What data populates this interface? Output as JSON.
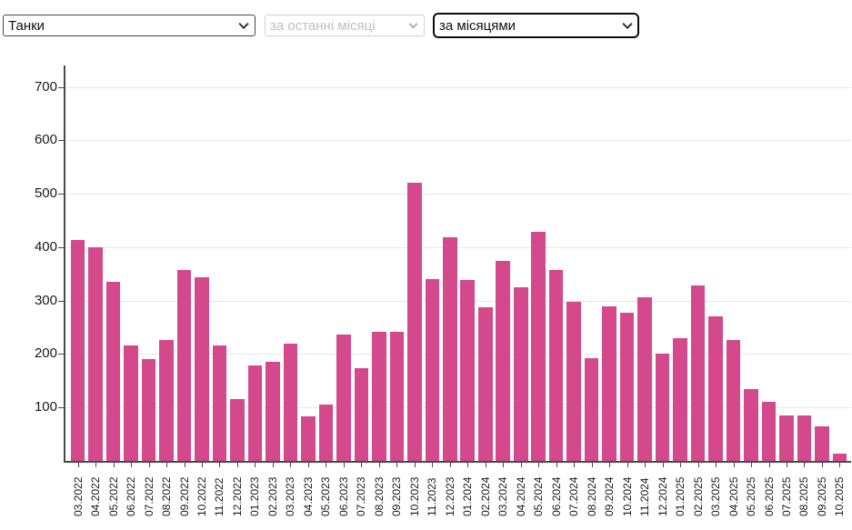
{
  "controls": {
    "category_select": {
      "value": "Танки"
    },
    "period_select": {
      "value": "за останні місяці"
    },
    "grouping_select": {
      "value": "за місяцями"
    }
  },
  "chart_data": {
    "type": "bar",
    "title": "",
    "categories": [
      "03.2022",
      "04.2022",
      "05.2022",
      "06.2022",
      "07.2022",
      "08.2022",
      "09.2022",
      "10.2022",
      "11.2022",
      "12.2022",
      "01.2023",
      "02.2023",
      "03.2023",
      "04.2023",
      "05.2023",
      "06.2023",
      "07.2023",
      "08.2023",
      "09.2023",
      "10.2023",
      "11.2023",
      "12.2023",
      "01.2024",
      "02.2024",
      "03.2024",
      "04.2024",
      "05.2024",
      "06.2024",
      "07.2024",
      "08.2024",
      "09.2024",
      "10.2024",
      "11.2024",
      "12.2024",
      "01.2025",
      "02.2025",
      "03.2025",
      "04.2025",
      "05.2025",
      "06.2025",
      "07.2025",
      "08.2025",
      "09.2025",
      "10.2025"
    ],
    "values": [
      413,
      400,
      335,
      216,
      190,
      227,
      357,
      343,
      216,
      115,
      178,
      185,
      220,
      83,
      106,
      237,
      173,
      241,
      241,
      521,
      341,
      418,
      339,
      287,
      375,
      325,
      428,
      357,
      298,
      192,
      290,
      278,
      306,
      200,
      229,
      329,
      270,
      227,
      135,
      110,
      85,
      85,
      65,
      13
    ],
    "xlabel": "",
    "ylabel": "",
    "yticks": [
      100,
      200,
      300,
      400,
      500,
      600,
      700
    ],
    "ylim": [
      0,
      740
    ],
    "grid": true,
    "legend": false,
    "bar_color": "#d3498c",
    "grid_color": "#e7e7e7",
    "axis_color": "#4a4a4a",
    "label_color": "#1a1a1a"
  }
}
